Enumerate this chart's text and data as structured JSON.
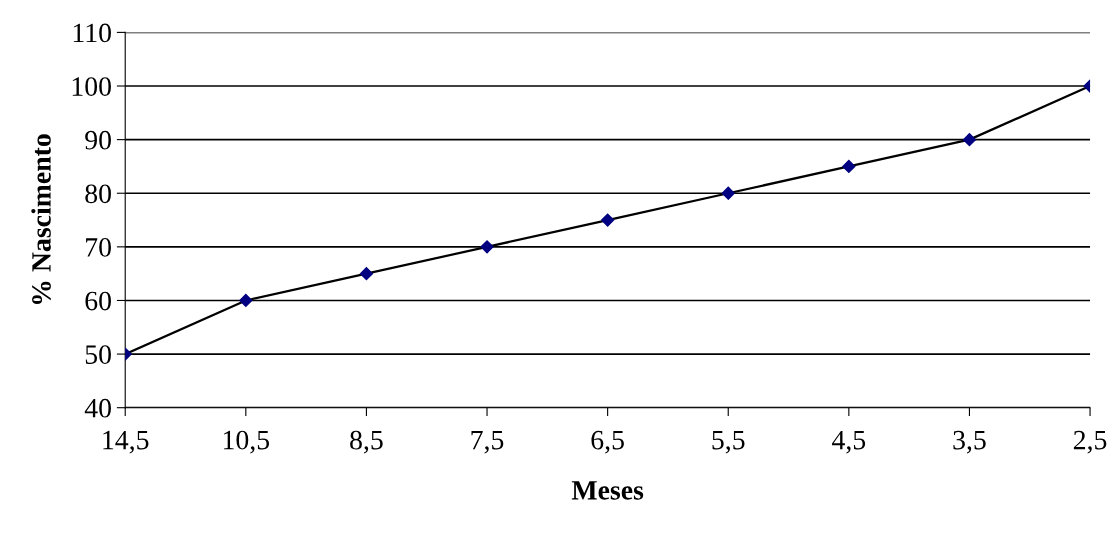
{
  "chart_data": {
    "type": "line",
    "xlabel": "Meses",
    "ylabel": "% Nascimento",
    "categories": [
      "14,5",
      "10,5",
      "8,5",
      "7,5",
      "6,5",
      "5,5",
      "4,5",
      "3,5",
      "2,5"
    ],
    "series": [
      {
        "color": "#000080",
        "values": [
          50,
          60,
          65,
          70,
          75,
          80,
          85,
          90,
          100
        ]
      }
    ],
    "ylim": [
      40,
      110
    ],
    "yticks": [
      40,
      50,
      60,
      70,
      80,
      90,
      100,
      110
    ],
    "grid": "y",
    "legend": false,
    "marker": "diamond",
    "line_style": "solid"
  }
}
